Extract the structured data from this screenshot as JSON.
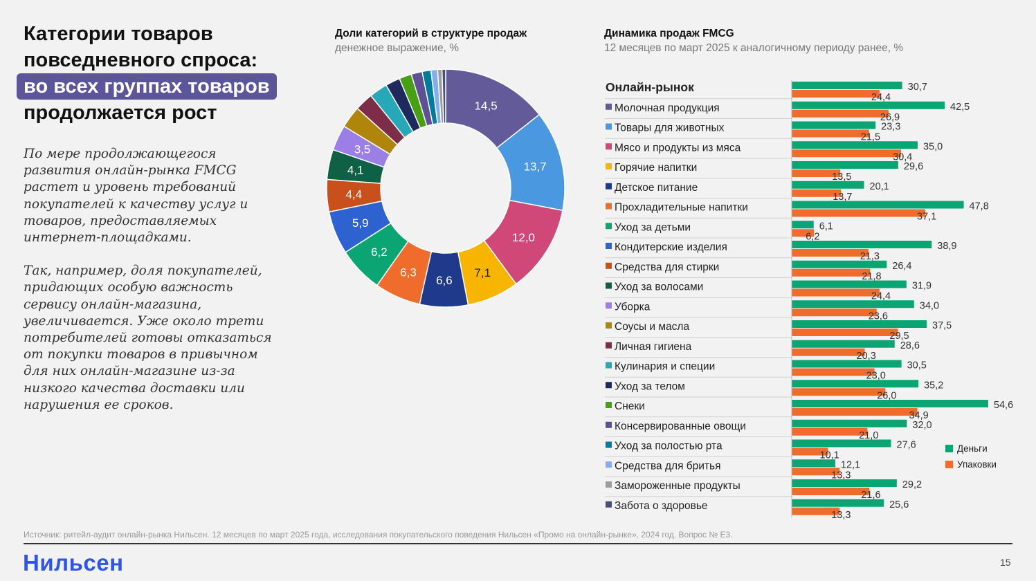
{
  "title": {
    "line1": "Категории товаров",
    "line2": "повседневного спроса:",
    "highlight": "во всех группах товаров",
    "line4": "продолжается рост"
  },
  "intro": {
    "p1": "По мере продолжающегося развития онлайн-рынка FMCG растет и уровень требований покупателей к качеству услуг и товаров, предоставляемых интернет-площадками.",
    "p2": "Так, например, доля покупателей, придающих особую важность сервису онлайн-магазина, увеличивается. Уже около трети потребителей готовы отказаться от покупки товаров в привычном для них онлайн-магазине из-за низкого качества доставки или нарушения ее сроков."
  },
  "footer": {
    "source": "Источник: ритейл-аудит онлайн-рынка Нильсен. 12 месяцев по март 2025 года, исследования покупательского поведения Нильсен «Промо на онлайн-рынке», 2024 год. Вопрос № E3.",
    "logo": "Нильсен",
    "page": "15"
  },
  "chart_data": [
    {
      "type": "pie",
      "title": "Доли категорий в структуре продаж",
      "subtitle": "денежное выражение, %",
      "slices": [
        {
          "value": 14.5,
          "label": "14,5",
          "color": "#635a9a"
        },
        {
          "value": 13.7,
          "label": "13,7",
          "color": "#4a98e0"
        },
        {
          "value": 12.0,
          "label": "12,0",
          "color": "#d04877"
        },
        {
          "value": 7.1,
          "label": "7,1",
          "color": "#f7b500"
        },
        {
          "value": 6.6,
          "label": "6,6",
          "color": "#1f3a8a"
        },
        {
          "value": 6.3,
          "label": "6,3",
          "color": "#ef6c2d"
        },
        {
          "value": 6.2,
          "label": "6,2",
          "color": "#0aa573"
        },
        {
          "value": 5.9,
          "label": "5,9",
          "color": "#2e62d0"
        },
        {
          "value": 4.4,
          "label": "4,4",
          "color": "#c9501a"
        },
        {
          "value": 4.1,
          "label": "4,1",
          "color": "#0f6145"
        },
        {
          "value": 3.5,
          "label": "3,5",
          "color": "#9b7fe6"
        },
        {
          "value": 3.0,
          "label": "",
          "color": "#b0850c"
        },
        {
          "value": 2.5,
          "label": "",
          "color": "#7e2d48"
        },
        {
          "value": 2.5,
          "label": "",
          "color": "#26a8b8"
        },
        {
          "value": 2.0,
          "label": "",
          "color": "#1e2a5e"
        },
        {
          "value": 1.7,
          "label": "",
          "color": "#46a012"
        },
        {
          "value": 1.5,
          "label": "",
          "color": "#5f4f94"
        },
        {
          "value": 1.2,
          "label": "",
          "color": "#037b9c"
        },
        {
          "value": 0.9,
          "label": "",
          "color": "#80aef0"
        },
        {
          "value": 0.6,
          "label": "",
          "color": "#9d9d9d"
        },
        {
          "value": 0.5,
          "label": "",
          "color": "#4a4f7a"
        }
      ]
    },
    {
      "type": "bar",
      "orientation": "horizontal",
      "title": "Динамика продаж FMCG",
      "subtitle": "12 месяцев по март 2025 к аналогичному периоду ранее, %",
      "xlim": [
        0,
        60
      ],
      "legend_position": "bottom-right",
      "series": [
        {
          "name": "Деньги",
          "color": "#0aa573"
        },
        {
          "name": "Упаковки",
          "color": "#ef6c2d"
        }
      ],
      "rows": [
        {
          "label": "Онлайн-рынок",
          "bold": true,
          "color": "",
          "money": 30.7,
          "money_label": "30,7",
          "units": 24.4,
          "units_label": "24,4"
        },
        {
          "label": "Молочная продукция",
          "color": "#635a9a",
          "money": 42.5,
          "money_label": "42,5",
          "units": 26.9,
          "units_label": "26,9"
        },
        {
          "label": "Товары для животных",
          "color": "#4a98e0",
          "money": 23.3,
          "money_label": "23,3",
          "units": 21.5,
          "units_label": "21,5"
        },
        {
          "label": "Мясо и продукты из мяса",
          "color": "#d04877",
          "money": 35.0,
          "money_label": "35,0",
          "units": 30.4,
          "units_label": "30,4"
        },
        {
          "label": "Горячие напитки",
          "color": "#f7b500",
          "money": 29.6,
          "money_label": "29,6",
          "units": 13.5,
          "units_label": "13,5"
        },
        {
          "label": "Детское питание",
          "color": "#1f3a8a",
          "money": 20.1,
          "money_label": "20,1",
          "units": 13.7,
          "units_label": "13,7"
        },
        {
          "label": "Прохладительные напитки",
          "color": "#ef6c2d",
          "money": 47.8,
          "money_label": "47,8",
          "units": 37.1,
          "units_label": "37,1"
        },
        {
          "label": "Уход за детьми",
          "color": "#0aa573",
          "money": 6.1,
          "money_label": "6,1",
          "units": 6.2,
          "units_label": "6,2"
        },
        {
          "label": "Кондитерские изделия",
          "color": "#2e62d0",
          "money": 38.9,
          "money_label": "38,9",
          "units": 21.3,
          "units_label": "21,3"
        },
        {
          "label": "Средства для стирки",
          "color": "#c9501a",
          "money": 26.4,
          "money_label": "26,4",
          "units": 21.8,
          "units_label": "21,8"
        },
        {
          "label": "Уход за волосами",
          "color": "#0f6145",
          "money": 31.9,
          "money_label": "31,9",
          "units": 24.4,
          "units_label": "24,4"
        },
        {
          "label": "Уборка",
          "color": "#9b7fe6",
          "money": 34.0,
          "money_label": "34,0",
          "units": 23.6,
          "units_label": "23,6"
        },
        {
          "label": "Соусы и масла",
          "color": "#b0850c",
          "money": 37.5,
          "money_label": "37,5",
          "units": 29.5,
          "units_label": "29,5"
        },
        {
          "label": "Личная гигиена",
          "color": "#7e2d48",
          "money": 28.6,
          "money_label": "28,6",
          "units": 20.3,
          "units_label": "20,3"
        },
        {
          "label": "Кулинария и специи",
          "color": "#26a8b8",
          "money": 30.5,
          "money_label": "30,5",
          "units": 23.0,
          "units_label": "23,0"
        },
        {
          "label": "Уход за телом",
          "color": "#1e2a5e",
          "money": 35.2,
          "money_label": "35,2",
          "units": 26.0,
          "units_label": "26,0"
        },
        {
          "label": "Снеки",
          "color": "#46a012",
          "money": 54.6,
          "money_label": "54,6",
          "units": 34.9,
          "units_label": "34,9"
        },
        {
          "label": "Консервированные овощи",
          "color": "#5f4f94",
          "money": 32.0,
          "money_label": "32,0",
          "units": 21.0,
          "units_label": "21,0"
        },
        {
          "label": "Уход за полостью рта",
          "color": "#037b9c",
          "money": 27.6,
          "money_label": "27,6",
          "units": 10.1,
          "units_label": "10,1"
        },
        {
          "label": "Средства для бритья",
          "color": "#80aef0",
          "money": 12.1,
          "money_label": "12,1",
          "units": 13.3,
          "units_label": "13,3"
        },
        {
          "label": "Замороженные продукты",
          "color": "#9d9d9d",
          "money": 29.2,
          "money_label": "29,2",
          "units": 21.6,
          "units_label": "21,6"
        },
        {
          "label": "Забота о здоровье",
          "color": "#4a4f7a",
          "money": 25.6,
          "money_label": "25,6",
          "units": 13.3,
          "units_label": "13,3"
        }
      ]
    }
  ]
}
